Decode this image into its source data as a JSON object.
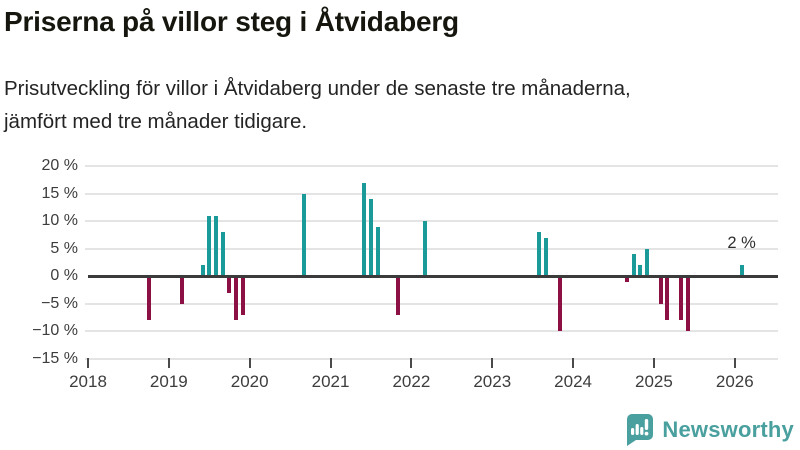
{
  "header": {
    "title": "Priserna på villor steg i Åtvidaberg",
    "subtitle": "Prisutveckling för villor i Åtvidaberg under de senaste tre månaderna, jämfört med tre månader tidigare."
  },
  "chart_data": {
    "type": "bar",
    "unit": "%",
    "points": [
      {
        "month": "2018-10",
        "value": -8
      },
      {
        "month": "2019-03",
        "value": -5
      },
      {
        "month": "2019-06",
        "value": 2
      },
      {
        "month": "2019-07",
        "value": 11
      },
      {
        "month": "2019-08",
        "value": 11
      },
      {
        "month": "2019-09",
        "value": 8
      },
      {
        "month": "2019-10",
        "value": -3
      },
      {
        "month": "2019-11",
        "value": -8
      },
      {
        "month": "2019-12",
        "value": -7
      },
      {
        "month": "2020-09",
        "value": 15
      },
      {
        "month": "2021-06",
        "value": 17
      },
      {
        "month": "2021-07",
        "value": 14
      },
      {
        "month": "2021-08",
        "value": 9
      },
      {
        "month": "2021-11",
        "value": -7
      },
      {
        "month": "2022-03",
        "value": 10
      },
      {
        "month": "2023-08",
        "value": 8
      },
      {
        "month": "2023-09",
        "value": 7
      },
      {
        "month": "2023-11",
        "value": -10
      },
      {
        "month": "2024-09",
        "value": -1
      },
      {
        "month": "2024-10",
        "value": 4
      },
      {
        "month": "2024-11",
        "value": 2
      },
      {
        "month": "2024-12",
        "value": 5
      },
      {
        "month": "2025-02",
        "value": -5
      },
      {
        "month": "2025-03",
        "value": -8
      },
      {
        "month": "2025-05",
        "value": -8
      },
      {
        "month": "2025-06",
        "value": -10
      },
      {
        "month": "2026-02",
        "value": 2
      }
    ],
    "yticks": [
      {
        "value": 20,
        "label": "20 %"
      },
      {
        "value": 15,
        "label": "15 %"
      },
      {
        "value": 10,
        "label": "10 %"
      },
      {
        "value": 5,
        "label": "5 %"
      },
      {
        "value": 0,
        "label": "0 %"
      },
      {
        "value": -5,
        "label": "−5 %"
      },
      {
        "value": -10,
        "label": "−10 %"
      },
      {
        "value": -15,
        "label": "−15 %"
      }
    ],
    "xticks": [
      {
        "year": 2018,
        "label": "2018"
      },
      {
        "year": 2019,
        "label": "2019"
      },
      {
        "year": 2020,
        "label": "2020"
      },
      {
        "year": 2021,
        "label": "2021"
      },
      {
        "year": 2022,
        "label": "2022"
      },
      {
        "year": 2023,
        "label": "2023"
      },
      {
        "year": 2024,
        "label": "2024"
      },
      {
        "year": 2025,
        "label": "2025"
      },
      {
        "year": 2026,
        "label": "2026"
      }
    ],
    "ylim": [
      -15,
      20
    ],
    "grid": true,
    "legend": "none",
    "annotation": {
      "text": "2 %",
      "month": "2026-02"
    },
    "colors": {
      "positive": "#1b9a9a",
      "negative": "#8d1044",
      "grid": "#e4e4e4",
      "axis": "#3b3b3b",
      "labels": "#3d3d3d"
    }
  },
  "footer": {
    "brand": "Newsworthy",
    "brand_color": "#4aa09e"
  }
}
